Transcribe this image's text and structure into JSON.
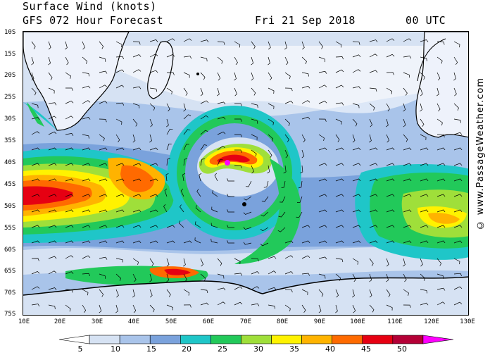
{
  "header": {
    "title": "Surface Wind (knots)",
    "model": "GFS 072 Hour Forecast",
    "date": "Fri 21 Sep 2018",
    "time": "00 UTC"
  },
  "credit": "© www.PassageWeather.com",
  "axes": {
    "lat_labels": [
      "10S",
      "15S",
      "20S",
      "25S",
      "30S",
      "35S",
      "40S",
      "45S",
      "50S",
      "55S",
      "60S",
      "65S",
      "70S",
      "75S"
    ],
    "lon_labels": [
      "10E",
      "20E",
      "30E",
      "40E",
      "50E",
      "60E",
      "70E",
      "80E",
      "90E",
      "100E",
      "110E",
      "120E",
      "130E"
    ]
  },
  "legend": {
    "labels": [
      "5",
      "10",
      "15",
      "20",
      "25",
      "30",
      "35",
      "40",
      "45",
      "50"
    ],
    "colors": [
      "#ffffff",
      "#d6e2f3",
      "#a9c4ea",
      "#7aa2dc",
      "#1fc6c8",
      "#22c95a",
      "#9fdf3a",
      "#fff200",
      "#ffb300",
      "#ff6a00",
      "#e60012",
      "#b40036",
      "#ff00ff"
    ]
  },
  "palette": {
    "ocean": "#a9c4ea",
    "land": "#eef2fb",
    "calm": "#ffffff",
    "strong": "#ff6a00",
    "storm": "#e60012",
    "extreme": "#ff00ff"
  }
}
